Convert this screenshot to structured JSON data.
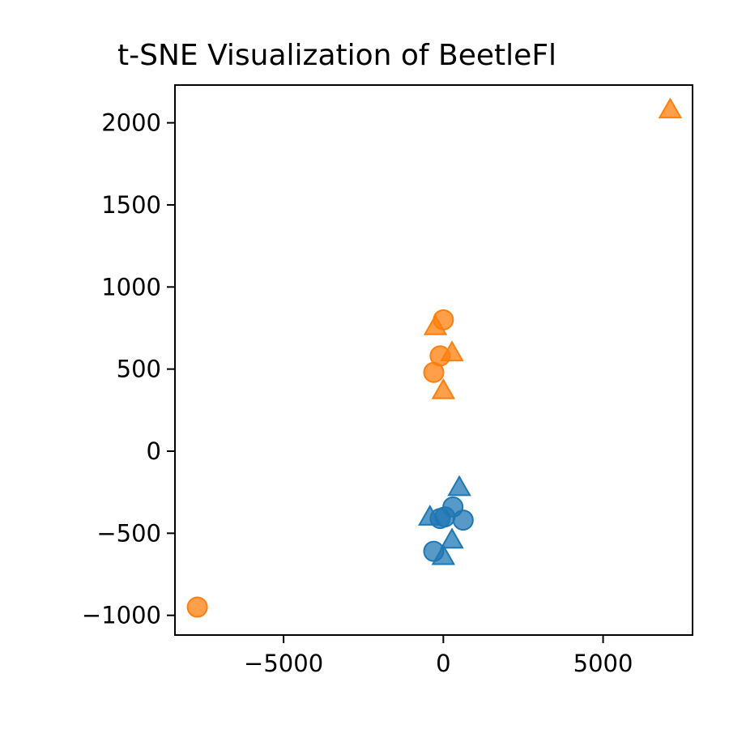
{
  "chart_data": {
    "type": "scatter",
    "title": "t-SNE Visualization of BeetleFl",
    "xlabel": "",
    "ylabel": "",
    "xlim": [
      -8400,
      7800
    ],
    "ylim": [
      -1120,
      2230
    ],
    "xticks": [
      -5000,
      0,
      5000
    ],
    "yticks": [
      -1000,
      -500,
      0,
      500,
      1000,
      1500,
      2000
    ],
    "xtick_labels": [
      "−5000",
      "0",
      "5000"
    ],
    "ytick_labels": [
      "−1000",
      "−500",
      "0",
      "500",
      "1000",
      "1500",
      "2000"
    ],
    "grid": false,
    "series": [
      {
        "color": "#1f77b4",
        "marker": "circle",
        "points": [
          [
            -300,
            -610
          ],
          [
            -100,
            -410
          ],
          [
            50,
            -400
          ],
          [
            300,
            -340
          ],
          [
            620,
            -420
          ]
        ]
      },
      {
        "color": "#1f77b4",
        "marker": "triangle",
        "points": [
          [
            -420,
            -400
          ],
          [
            500,
            -220
          ],
          [
            270,
            -540
          ],
          [
            0,
            -640
          ]
        ]
      },
      {
        "color": "#ff7f0e",
        "marker": "circle",
        "points": [
          [
            0,
            800
          ],
          [
            -100,
            580
          ],
          [
            -300,
            480
          ],
          [
            -7700,
            -950
          ]
        ]
      },
      {
        "color": "#ff7f0e",
        "marker": "triangle",
        "points": [
          [
            -250,
            760
          ],
          [
            270,
            600
          ],
          [
            0,
            370
          ],
          [
            7100,
            2080
          ]
        ]
      }
    ]
  }
}
